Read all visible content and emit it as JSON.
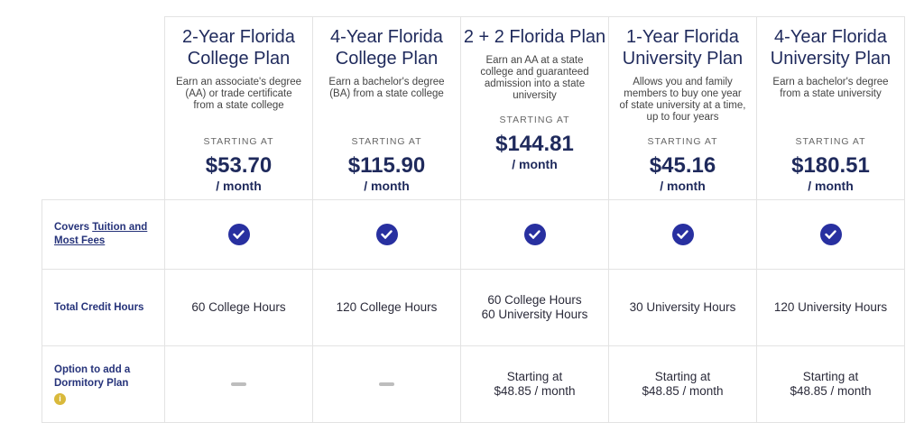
{
  "plans": [
    {
      "title": "2-Year Florida College Plan",
      "desc": "Earn an associate's degree (AA) or trade certificate from a state college",
      "starting": "STARTING AT",
      "price": "$53.70",
      "per": "/ month",
      "hours": "60 College Hours",
      "hours2": "",
      "dorm": "",
      "dorm2": ""
    },
    {
      "title": "4-Year Florida College Plan",
      "desc": "Earn a bachelor's degree (BA) from a state college",
      "starting": "STARTING AT",
      "price": "$115.90",
      "per": "/ month",
      "hours": "120 College Hours",
      "hours2": "",
      "dorm": "",
      "dorm2": ""
    },
    {
      "title": "2 + 2 Florida Plan",
      "desc": "Earn an AA at a state college and guaranteed admission into a state university",
      "starting": "STARTING AT",
      "price": "$144.81",
      "per": "/ month",
      "hours": "60 College Hours",
      "hours2": "60 University Hours",
      "dorm": "Starting at",
      "dorm2": "$48.85 / month"
    },
    {
      "title": "1-Year Florida University Plan",
      "desc": "Allows you and family members to buy one year of state university at a time, up to four years",
      "starting": "STARTING AT",
      "price": "$45.16",
      "per": "/ month",
      "hours": "30 University Hours",
      "hours2": "",
      "dorm": "Starting at",
      "dorm2": "$48.85 / month"
    },
    {
      "title": "4-Year Florida University Plan",
      "desc": "Earn a bachelor's degree from a state university",
      "starting": "STARTING AT",
      "price": "$180.51",
      "per": "/ month",
      "hours": "120 University Hours",
      "hours2": "",
      "dorm": "Starting at",
      "dorm2": "$48.85 / month"
    }
  ],
  "rows": {
    "covers_prefix": "Covers ",
    "covers_link": "Tuition and Most Fees",
    "credit": "Total Credit Hours",
    "dorm": "Option to add a Dormitory Plan",
    "info": "i"
  }
}
